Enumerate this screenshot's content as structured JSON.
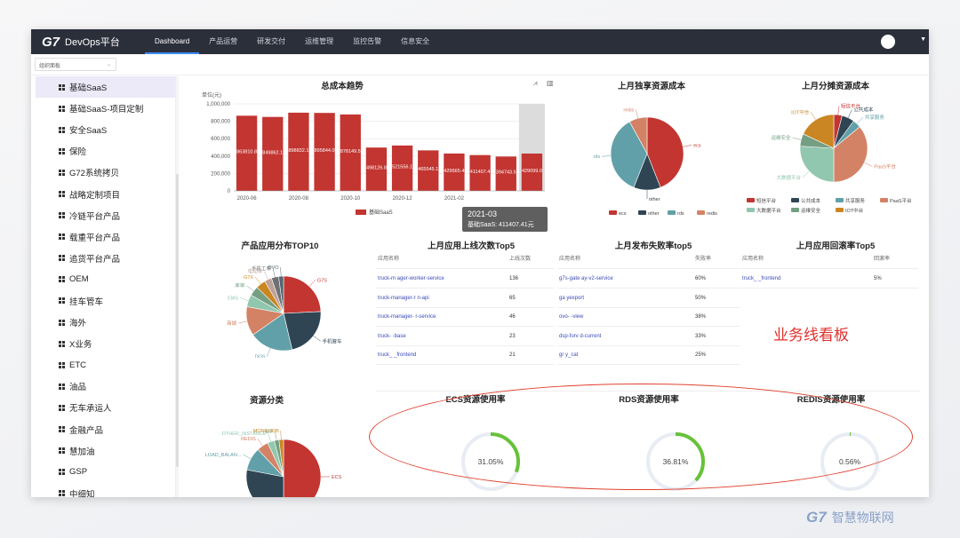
{
  "topnav": {
    "logo_mark": "G7",
    "app_title": "DevOps平台",
    "items": [
      "Dashboard",
      "产品运营",
      "研发交付",
      "运维管理",
      "监控告警",
      "信息安全"
    ]
  },
  "org_select": {
    "value": "组织面板"
  },
  "sidebar": {
    "items": [
      "基础SaaS",
      "基础SaaS-项目定制",
      "安全SaaS",
      "保险",
      "G72系统拷贝",
      "战略定制项目",
      "冷链平台产品",
      "载重平台产品",
      "追货平台产品",
      "OEM",
      "挂车管车",
      "海外",
      "X业务",
      "ETC",
      "油品",
      "无车承运人",
      "金融产品",
      "慧加油",
      "GSP",
      "中细知"
    ]
  },
  "cost_trend": {
    "title": "总成本趋势",
    "unit": "单位(元)",
    "tooltip_date": "2021-03",
    "tooltip_text": "基础SaaS: 411407.41元",
    "legend": "基础SaaS"
  },
  "exclusive_cost": {
    "title": "上月独享资源成本",
    "legend": [
      "ecs",
      "other",
      "rds",
      "redis"
    ]
  },
  "shared_cost": {
    "title": "上月分摊资源成本",
    "legend": [
      "短信平台",
      "公共成本",
      "共享服务",
      "PaaS平台",
      "大数据平台",
      "运维安全",
      "IOT中台"
    ]
  },
  "app_top10": {
    "title": "产品应用分布TOP10"
  },
  "deploy_top5": {
    "title": "上月应用上线次数Top5",
    "headers": [
      "应用名称",
      "上线次数"
    ],
    "rows": [
      [
        "truck-m   ager-worker-service",
        "136"
      ],
      [
        "truck-manager-r    n-api",
        "65"
      ],
      [
        "truck-manager-        r-service",
        "46"
      ],
      [
        "truck-    -base",
        "23"
      ],
      [
        "truck_    _frontend",
        "21"
      ]
    ]
  },
  "fail_top5": {
    "title": "上月发布失败率top5",
    "headers": [
      "应用名称",
      "失败率"
    ],
    "rows": [
      [
        "g7s-gate    ay-v2-service",
        "60%"
      ],
      [
        "ga      yexport",
        "50%"
      ],
      [
        "ovo-    -view",
        "38%"
      ],
      [
        "dsp-forv    d-current",
        "33%"
      ],
      [
        "gr       y_cat",
        "25%"
      ]
    ]
  },
  "rollback_top5": {
    "title": "上月应用回滚率Top5",
    "headers": [
      "应用名称",
      "回滚率"
    ],
    "rows": [
      [
        "truck_    _frontend",
        "5%"
      ]
    ]
  },
  "annotation": "业务线看板",
  "resource_class": {
    "title": "资源分类"
  },
  "usage": {
    "ecs": {
      "title": "ECS资源使用率",
      "value": "31.05%",
      "fraction": 0.3105
    },
    "rds": {
      "title": "RDS资源使用率",
      "value": "36.81%",
      "fraction": 0.3681
    },
    "redis": {
      "title": "REDIS资源使用率",
      "value": "0.56%",
      "fraction": 0.0056
    }
  },
  "watermark": {
    "mark": "G7",
    "text": "智慧物联网"
  },
  "chart_data": [
    {
      "type": "bar",
      "title": "总成本趋势",
      "ylabel": "单位(元)",
      "ylim": [
        0,
        1000000
      ],
      "yticks": [
        "0",
        "200,000",
        "400,000",
        "600,000",
        "800,000",
        "1,000,000"
      ],
      "x_tick_labels": [
        "2020-06",
        "2020-08",
        "2020-10",
        "2020-12",
        "2021-02"
      ],
      "categories": [
        "2020-06",
        "2020-07",
        "2020-08",
        "2020-09",
        "2020-10",
        "2020-11",
        "2020-12",
        "2021-01",
        "2021-02",
        "2021-03",
        "2021-04",
        "2021-05"
      ],
      "data_labels": [
        "863810.8",
        "849862.1",
        "898832.1",
        "895844.0",
        "878149.5",
        "498126.8",
        "521556.1",
        "465545.1",
        "429565.4",
        "411407.4",
        "394743.5",
        "429099.0"
      ],
      "series": [
        {
          "name": "基础SaaS",
          "values": [
            863810.8,
            849862.1,
            898832.1,
            895844.0,
            878149.5,
            498126.8,
            521556.1,
            465545.1,
            429565.4,
            411407.4,
            394743.5,
            429099.0
          ]
        }
      ],
      "highlight_category": "2021-05",
      "colors": [
        "#c23531"
      ]
    },
    {
      "type": "pie",
      "title": "上月独享资源成本",
      "labels": [
        "ecs",
        "other",
        "rds",
        "redis"
      ],
      "values": [
        44,
        12,
        36,
        8
      ],
      "colors": [
        "#c23531",
        "#2f4554",
        "#61a0a8",
        "#d48265"
      ]
    },
    {
      "type": "pie",
      "title": "上月分摊资源成本",
      "labels": [
        "短信平台",
        "公共成本",
        "共享服务",
        "PaaS平台",
        "大数据平台",
        "运维安全",
        "IOT中台"
      ],
      "values": [
        4,
        6,
        4,
        36,
        26,
        6,
        18
      ],
      "colors": [
        "#c23531",
        "#2f4554",
        "#61a0a8",
        "#d48265",
        "#91c7ae",
        "#749f83",
        "#ca8622"
      ]
    },
    {
      "type": "pie",
      "title": "产品应用分布TOP10",
      "labels": [
        "G7S",
        "手机管车",
        "DOS",
        "商城",
        "EMS",
        "库审",
        "G7X",
        "电动车",
        "手机工单",
        "OVO"
      ],
      "values": [
        23,
        21,
        18,
        12,
        5,
        4,
        4,
        3,
        3,
        2
      ],
      "colors": [
        "#c23531",
        "#2f4554",
        "#61a0a8",
        "#d48265",
        "#91c7ae",
        "#749f83",
        "#ca8622",
        "#bda29a",
        "#6e7074",
        "#546570"
      ]
    },
    {
      "type": "pie",
      "title": "资源分类",
      "labels": [
        "ECS",
        "RDS",
        "LOAD_BALAN...",
        "REDIS",
        "OTHER_INSTANCE",
        "EIP",
        "MONGODB"
      ],
      "values": [
        50,
        28,
        10,
        5,
        3,
        2,
        2
      ],
      "colors": [
        "#c23531",
        "#2f4554",
        "#61a0a8",
        "#d48265",
        "#91c7ae",
        "#749f83",
        "#ca8622"
      ]
    }
  ]
}
